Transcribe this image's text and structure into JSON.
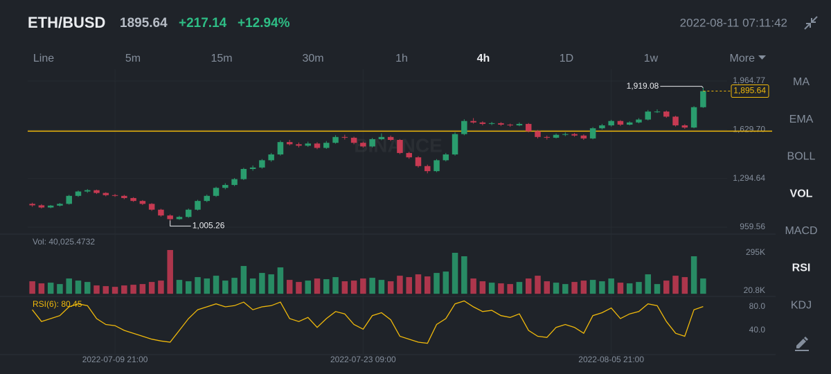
{
  "header": {
    "pair": "ETH/BUSD",
    "price": "1895.64",
    "change": "+217.14",
    "change_pct": "+12.94%",
    "datetime": "2022-08-11 07:11:42"
  },
  "toolbar": {
    "intervals": [
      "Line",
      "5m",
      "15m",
      "30m",
      "1h",
      "4h",
      "1D",
      "1w"
    ],
    "active": "4h",
    "more": "More"
  },
  "sidebar": {
    "indicators": [
      "MA",
      "EMA",
      "BOLL",
      "VOL",
      "MACD",
      "RSI",
      "KDJ"
    ],
    "active": [
      "VOL",
      "RSI"
    ]
  },
  "chart_data": [
    {
      "type": "candlestick",
      "watermark": "BINANCE",
      "categories": [
        null,
        null,
        null,
        null,
        null,
        null,
        null,
        null,
        null,
        "2022-07-09 21:00",
        null,
        null,
        null,
        null,
        null,
        null,
        null,
        null,
        null,
        null,
        null,
        null,
        null,
        null,
        null,
        null,
        null,
        null,
        null,
        null,
        null,
        null,
        null,
        null,
        null,
        null,
        "2022-07-23 09:00",
        null,
        null,
        null,
        null,
        null,
        null,
        null,
        null,
        null,
        null,
        null,
        null,
        null,
        null,
        null,
        null,
        null,
        null,
        null,
        null,
        null,
        null,
        null,
        null,
        null,
        null,
        "2022-08-05 21:00",
        null,
        null,
        null,
        null,
        null,
        null,
        null,
        null,
        null,
        null
      ],
      "ohlc": [
        [
          1120,
          1128,
          1100,
          1110
        ],
        [
          1110,
          1118,
          1088,
          1095
        ],
        [
          1095,
          1112,
          1090,
          1108
        ],
        [
          1108,
          1126,
          1102,
          1120
        ],
        [
          1120,
          1182,
          1115,
          1175
        ],
        [
          1175,
          1212,
          1168,
          1205
        ],
        [
          1205,
          1222,
          1196,
          1214
        ],
        [
          1214,
          1218,
          1188,
          1195
        ],
        [
          1195,
          1200,
          1172,
          1180
        ],
        [
          1180,
          1188,
          1168,
          1175
        ],
        [
          1175,
          1182,
          1152,
          1160
        ],
        [
          1160,
          1166,
          1134,
          1140
        ],
        [
          1140,
          1146,
          1112,
          1120
        ],
        [
          1120,
          1125,
          1072,
          1080
        ],
        [
          1080,
          1086,
          1032,
          1040
        ],
        [
          1040,
          1048,
          1005.26,
          1015
        ],
        [
          1015,
          1038,
          1010,
          1030
        ],
        [
          1030,
          1088,
          1024,
          1080
        ],
        [
          1080,
          1148,
          1074,
          1140
        ],
        [
          1140,
          1184,
          1132,
          1175
        ],
        [
          1175,
          1238,
          1168,
          1230
        ],
        [
          1230,
          1262,
          1220,
          1250
        ],
        [
          1250,
          1298,
          1242,
          1290
        ],
        [
          1290,
          1368,
          1284,
          1360
        ],
        [
          1360,
          1384,
          1348,
          1370
        ],
        [
          1370,
          1428,
          1362,
          1420
        ],
        [
          1420,
          1470,
          1410,
          1460
        ],
        [
          1460,
          1556,
          1452,
          1545
        ],
        [
          1545,
          1560,
          1522,
          1530
        ],
        [
          1530,
          1542,
          1508,
          1520
        ],
        [
          1520,
          1548,
          1512,
          1535
        ],
        [
          1535,
          1544,
          1496,
          1505
        ],
        [
          1505,
          1552,
          1498,
          1540
        ],
        [
          1540,
          1592,
          1534,
          1580
        ],
        [
          1580,
          1596,
          1562,
          1575
        ],
        [
          1575,
          1582,
          1530,
          1540
        ],
        [
          1540,
          1548,
          1506,
          1515
        ],
        [
          1515,
          1574,
          1508,
          1565
        ],
        [
          1565,
          1605,
          1558,
          1580
        ],
        [
          1580,
          1590,
          1552,
          1560
        ],
        [
          1560,
          1566,
          1462,
          1470
        ],
        [
          1470,
          1478,
          1430,
          1440
        ],
        [
          1440,
          1448,
          1370,
          1380
        ],
        [
          1380,
          1390,
          1330,
          1345
        ],
        [
          1345,
          1428,
          1338,
          1420
        ],
        [
          1420,
          1470,
          1412,
          1460
        ],
        [
          1460,
          1612,
          1452,
          1600
        ],
        [
          1600,
          1702,
          1592,
          1690
        ],
        [
          1690,
          1710,
          1672,
          1680
        ],
        [
          1680,
          1688,
          1660,
          1670
        ],
        [
          1670,
          1684,
          1662,
          1675
        ],
        [
          1675,
          1682,
          1656,
          1665
        ],
        [
          1665,
          1672,
          1650,
          1660
        ],
        [
          1660,
          1680,
          1654,
          1670
        ],
        [
          1670,
          1676,
          1612,
          1620
        ],
        [
          1620,
          1628,
          1570,
          1580
        ],
        [
          1580,
          1590,
          1562,
          1575
        ],
        [
          1575,
          1604,
          1570,
          1595
        ],
        [
          1595,
          1612,
          1586,
          1600
        ],
        [
          1600,
          1608,
          1582,
          1590
        ],
        [
          1590,
          1598,
          1560,
          1570
        ],
        [
          1570,
          1648,
          1564,
          1640
        ],
        [
          1640,
          1670,
          1632,
          1660
        ],
        [
          1660,
          1698,
          1652,
          1690
        ],
        [
          1690,
          1696,
          1656,
          1665
        ],
        [
          1665,
          1688,
          1660,
          1680
        ],
        [
          1680,
          1710,
          1674,
          1700
        ],
        [
          1700,
          1766,
          1694,
          1755
        ],
        [
          1755,
          1770,
          1745,
          1755
        ],
        [
          1755,
          1762,
          1712,
          1720
        ],
        [
          1720,
          1726,
          1652,
          1660
        ],
        [
          1660,
          1668,
          1636,
          1645
        ],
        [
          1645,
          1792,
          1640,
          1785
        ],
        [
          1785,
          1919.08,
          1780,
          1895.64
        ]
      ],
      "up_color": "#2a9d6e",
      "down_color": "#c73a52",
      "ylim": [
        912,
        2046
      ],
      "yticks": [
        959.56,
        {
          "value": 1294.64,
          "label": "1,294.64"
        },
        {
          "value": 1629.7,
          "label": "1,629.70"
        },
        {
          "value": 1964.77,
          "label": "1,964.77"
        }
      ],
      "annotations": [
        {
          "value": 1919.08,
          "label": "1,919.08"
        },
        {
          "value": 1005.26,
          "label": "1,005.26"
        }
      ],
      "last_price": {
        "value": 1895.64,
        "label": "1,895.64",
        "color": "#f0b90b"
      },
      "hline": {
        "value": 1620,
        "color": "#f0b90b"
      }
    },
    {
      "type": "bar",
      "title": "Vol: 40,025.4732",
      "values": [
        90000,
        75000,
        80000,
        70000,
        110000,
        95000,
        85000,
        60000,
        55000,
        50000,
        60000,
        65000,
        70000,
        85000,
        95000,
        315000,
        100000,
        90000,
        120000,
        110000,
        130000,
        95000,
        115000,
        200000,
        110000,
        150000,
        140000,
        190000,
        100000,
        85000,
        95000,
        110000,
        105000,
        120000,
        90000,
        95000,
        110000,
        115000,
        100000,
        90000,
        130000,
        120000,
        140000,
        125000,
        150000,
        160000,
        295000,
        270000,
        110000,
        90000,
        80000,
        75000,
        70000,
        85000,
        110000,
        130000,
        90000,
        80000,
        70000,
        85000,
        95000,
        100000,
        90000,
        110000,
        80000,
        75000,
        85000,
        140000,
        70000,
        95000,
        130000,
        120000,
        270000,
        110000
      ],
      "ylim": [
        -19100,
        394700
      ],
      "yticks": [
        {
          "value": 20800,
          "label": "20.8K"
        },
        {
          "value": 295000,
          "label": "295K"
        }
      ]
    },
    {
      "type": "line",
      "title": "RSI(6): 80.45",
      "color": "#f0b90b",
      "values": [
        75,
        55,
        60,
        65,
        80,
        85,
        82,
        60,
        50,
        48,
        40,
        35,
        30,
        25,
        22,
        20,
        40,
        60,
        75,
        80,
        85,
        80,
        82,
        88,
        75,
        80,
        82,
        88,
        60,
        55,
        62,
        45,
        60,
        72,
        68,
        50,
        42,
        65,
        70,
        58,
        30,
        25,
        20,
        18,
        50,
        60,
        85,
        90,
        80,
        72,
        74,
        65,
        62,
        68,
        40,
        30,
        28,
        45,
        50,
        45,
        35,
        65,
        70,
        78,
        60,
        68,
        72,
        85,
        82,
        55,
        35,
        30,
        75,
        80.45
      ],
      "ylim": [
        -1.2,
        92.9
      ],
      "yticks": [
        {
          "value": 40,
          "label": "40.0"
        },
        {
          "value": 80,
          "label": "80.0"
        }
      ]
    }
  ]
}
